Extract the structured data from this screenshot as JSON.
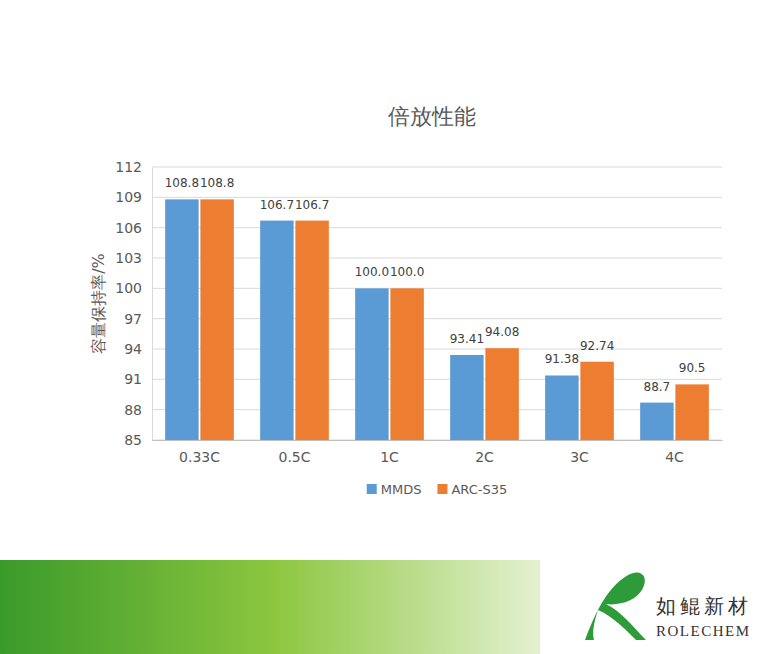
{
  "chart_data": {
    "type": "bar",
    "title": "倍放性能",
    "ylabel": "容量保持率/%",
    "categories": [
      "0.33C",
      "0.5C",
      "1C",
      "2C",
      "3C",
      "4C"
    ],
    "series": [
      {
        "name": "MMDS",
        "color": "#5b9bd5",
        "values": [
          108.8,
          106.7,
          100,
          93.41,
          91.38,
          88.7
        ],
        "value_labels": [
          "108.8",
          "106.7",
          "100.0",
          "93.41",
          "91.38",
          "88.7"
        ]
      },
      {
        "name": "ARC-S35",
        "color": "#ed7d31",
        "values": [
          108.8,
          106.7,
          100,
          94.08,
          92.74,
          90.5
        ],
        "value_labels": [
          "108.8",
          "106.7",
          "100.0",
          "94.08",
          "92.74",
          "90.5"
        ]
      }
    ],
    "ylim": [
      85,
      112
    ],
    "yticks": [
      85,
      88,
      91,
      94,
      97,
      100,
      103,
      106,
      109,
      112
    ],
    "grid": true,
    "legend": "bottom",
    "data_labels": true,
    "annotations": [
      "如鲲新材",
      "ROLECHEM"
    ]
  }
}
